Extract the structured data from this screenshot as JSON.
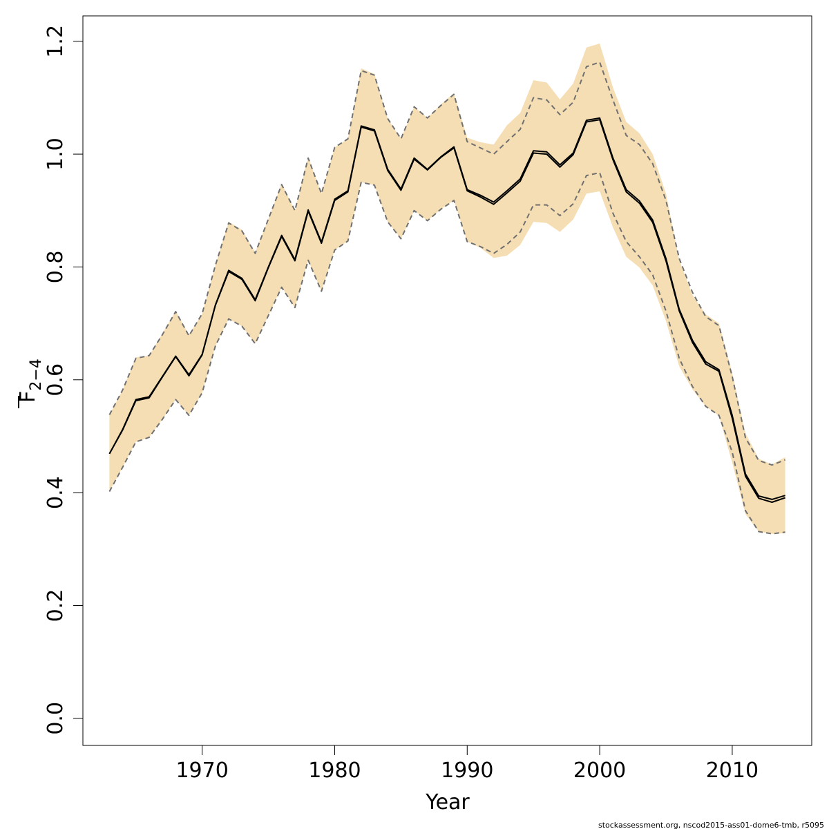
{
  "chart_data": {
    "type": "line",
    "title": "",
    "xlabel": "Year",
    "ylabel_main": "F",
    "ylabel_sub": "2−4",
    "xlim": [
      1961.0,
      2016.0
    ],
    "ylim": [
      -0.048,
      1.245
    ],
    "xticks": [
      1970,
      1980,
      1990,
      2000,
      2010
    ],
    "yticks": [
      0.0,
      0.2,
      0.4,
      0.6,
      0.8,
      1.0,
      1.2
    ],
    "ytick_labels": [
      "0.0",
      "0.2",
      "0.4",
      "0.6",
      "0.8",
      "1.0",
      "1.2"
    ],
    "grid": false,
    "legend": "none",
    "band_color": "#f5deb3",
    "line_color": "#000000",
    "dashed_color": "#707070",
    "x": [
      1963,
      1964,
      1965,
      1966,
      1967,
      1968,
      1969,
      1970,
      1971,
      1972,
      1973,
      1974,
      1975,
      1976,
      1977,
      1978,
      1979,
      1980,
      1981,
      1982,
      1983,
      1984,
      1985,
      1986,
      1987,
      1988,
      1989,
      1990,
      1991,
      1992,
      1993,
      1994,
      1995,
      1996,
      1997,
      1998,
      1999,
      2000,
      2001,
      2002,
      2003,
      2004,
      2005,
      2006,
      2007,
      2008,
      2009,
      2010,
      2011,
      2012,
      2013,
      2014
    ],
    "series": [
      {
        "role": "estimate",
        "values": [
          0.469,
          0.512,
          0.565,
          0.57,
          0.606,
          0.642,
          0.609,
          0.645,
          0.733,
          0.794,
          0.78,
          0.742,
          0.8,
          0.856,
          0.813,
          0.901,
          0.844,
          0.92,
          0.935,
          1.05,
          1.043,
          0.973,
          0.938,
          0.993,
          0.973,
          0.995,
          1.013,
          0.937,
          0.927,
          0.915,
          0.935,
          0.956,
          1.006,
          1.004,
          0.981,
          1.002,
          1.06,
          1.064,
          0.993,
          0.937,
          0.917,
          0.883,
          0.815,
          0.725,
          0.67,
          0.632,
          0.618,
          0.537,
          0.433,
          0.394,
          0.388,
          0.395
        ]
      },
      {
        "role": "estimate-alt",
        "values": [
          0.469,
          0.511,
          0.563,
          0.568,
          0.605,
          0.641,
          0.607,
          0.644,
          0.732,
          0.792,
          0.778,
          0.74,
          0.799,
          0.854,
          0.811,
          0.899,
          0.842,
          0.918,
          0.933,
          1.048,
          1.041,
          0.971,
          0.936,
          0.991,
          0.972,
          0.994,
          1.011,
          0.935,
          0.924,
          0.911,
          0.931,
          0.952,
          1.002,
          1.0,
          0.977,
          0.999,
          1.057,
          1.061,
          0.99,
          0.933,
          0.913,
          0.879,
          0.811,
          0.722,
          0.666,
          0.628,
          0.615,
          0.532,
          0.429,
          0.39,
          0.383,
          0.391
        ]
      },
      {
        "role": "upper-ci",
        "values": [
          0.538,
          0.582,
          0.638,
          0.643,
          0.68,
          0.721,
          0.678,
          0.717,
          0.803,
          0.878,
          0.864,
          0.824,
          0.885,
          0.946,
          0.9,
          0.993,
          0.93,
          1.012,
          1.027,
          1.148,
          1.14,
          1.063,
          1.027,
          1.084,
          1.064,
          1.086,
          1.106,
          1.022,
          1.011,
          1.0,
          1.022,
          1.044,
          1.1,
          1.096,
          1.07,
          1.092,
          1.155,
          1.163,
          1.096,
          1.033,
          1.017,
          0.983,
          0.918,
          0.815,
          0.755,
          0.712,
          0.696,
          0.606,
          0.497,
          0.457,
          0.449,
          0.458
        ]
      },
      {
        "role": "lower-ci",
        "values": [
          0.402,
          0.445,
          0.49,
          0.498,
          0.53,
          0.565,
          0.537,
          0.577,
          0.66,
          0.708,
          0.695,
          0.664,
          0.714,
          0.764,
          0.728,
          0.812,
          0.757,
          0.83,
          0.846,
          0.95,
          0.945,
          0.88,
          0.85,
          0.9,
          0.882,
          0.902,
          0.918,
          0.845,
          0.836,
          0.824,
          0.84,
          0.862,
          0.91,
          0.91,
          0.891,
          0.912,
          0.962,
          0.967,
          0.895,
          0.845,
          0.818,
          0.786,
          0.722,
          0.638,
          0.588,
          0.553,
          0.537,
          0.472,
          0.368,
          0.331,
          0.327,
          0.33
        ]
      },
      {
        "role": "band-upper",
        "values": [
          0.538,
          0.582,
          0.64,
          0.643,
          0.682,
          0.722,
          0.68,
          0.717,
          0.803,
          0.88,
          0.866,
          0.826,
          0.885,
          0.948,
          0.9,
          0.995,
          0.93,
          1.012,
          1.027,
          1.152,
          1.142,
          1.063,
          1.027,
          1.084,
          1.064,
          1.088,
          1.108,
          1.029,
          1.021,
          1.017,
          1.051,
          1.073,
          1.131,
          1.127,
          1.097,
          1.125,
          1.189,
          1.196,
          1.118,
          1.057,
          1.037,
          1.0,
          0.93,
          0.812,
          0.75,
          0.716,
          0.7,
          0.612,
          0.505,
          0.46,
          0.45,
          0.463
        ]
      },
      {
        "role": "band-lower",
        "values": [
          0.402,
          0.445,
          0.49,
          0.498,
          0.53,
          0.565,
          0.537,
          0.577,
          0.66,
          0.708,
          0.695,
          0.664,
          0.714,
          0.764,
          0.728,
          0.812,
          0.757,
          0.83,
          0.846,
          0.95,
          0.945,
          0.88,
          0.85,
          0.9,
          0.882,
          0.902,
          0.918,
          0.845,
          0.834,
          0.816,
          0.82,
          0.839,
          0.88,
          0.878,
          0.862,
          0.884,
          0.93,
          0.934,
          0.87,
          0.818,
          0.799,
          0.767,
          0.704,
          0.624,
          0.583,
          0.553,
          0.536,
          0.453,
          0.362,
          0.331,
          0.327,
          0.328
        ]
      }
    ]
  },
  "source_note": "stockassessment.org, nscod2015-ass01-dome6-tmb, r5095"
}
